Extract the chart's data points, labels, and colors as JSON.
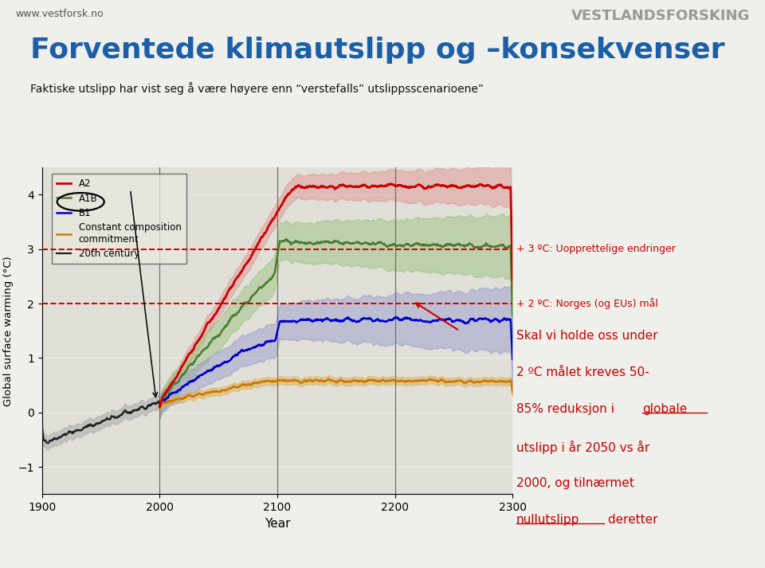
{
  "title_main": "Forventede klimautslipp og –konsekvenser",
  "subtitle": "Faktiske utslipp har vist seg å være høyere enn “verstefalls” utslippsscenarioene”",
  "xlabel": "Year",
  "ylabel": "Global surface warming (°C)",
  "xlim": [
    1900,
    2300
  ],
  "ylim": [
    -1.5,
    4.5
  ],
  "yticks": [
    -1.0,
    0.0,
    1.0,
    2.0,
    3.0,
    4.0
  ],
  "xticks": [
    1900,
    2000,
    2100,
    2200,
    2300
  ],
  "bg_color": "#efefeb",
  "plot_bg": "#e0e0d8",
  "line3_label": "+ 3 ºC: Uopprettelige endringer",
  "line2_label": "+ 2 ºC: Norges (og EUs) mål",
  "website": "www.vestforsk.no",
  "logo": "VESTLANDSFORSKING",
  "title_color": "#1a5fa8",
  "annotation_color": "#cc0000",
  "dashed_line_color": "#cc0000",
  "legend_colors": [
    "#cc0000",
    "#4a7a30",
    "#0000cc",
    "#cc7700",
    "#222222"
  ],
  "vertical_lines": [
    2000,
    2100,
    2200
  ],
  "text_lines": [
    "Skal vi holde oss under",
    "2 ºC målet kreves 50-",
    "85% reduksjon i globale",
    "utslipp i år 2050 vs år",
    "2000, og tilnærmet",
    "nullutslipp deretter"
  ]
}
